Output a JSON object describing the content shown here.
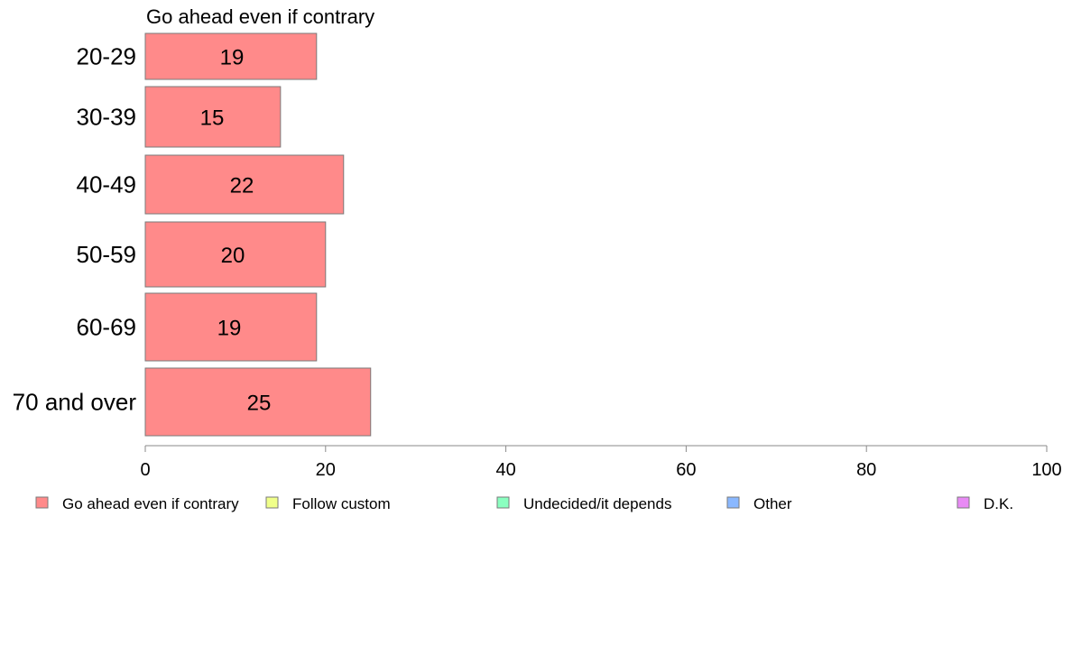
{
  "chart_data": {
    "type": "bar",
    "orientation": "horizontal",
    "title": "Go ahead even if contrary",
    "categories": [
      "20-29",
      "30-39",
      "40-49",
      "50-59",
      "60-69",
      "70 and over"
    ],
    "series": [
      {
        "name": "Go ahead even if contrary",
        "values": [
          19,
          15,
          22,
          20,
          19,
          25
        ],
        "color": "#FF8A8A"
      }
    ],
    "xlim": [
      0,
      100
    ],
    "xticks": [
      0,
      20,
      40,
      60,
      80,
      100
    ],
    "grid": false,
    "legend_position": "bottom",
    "legend": [
      {
        "label": "Go ahead even if contrary",
        "color": "#FF8A8A"
      },
      {
        "label": "Follow custom",
        "color": "#F0FF8A"
      },
      {
        "label": "Undecided/it depends",
        "color": "#8AFFC0"
      },
      {
        "label": "Other",
        "color": "#8AB8FF"
      },
      {
        "label": "D.K.",
        "color": "#E88AF5"
      }
    ]
  }
}
